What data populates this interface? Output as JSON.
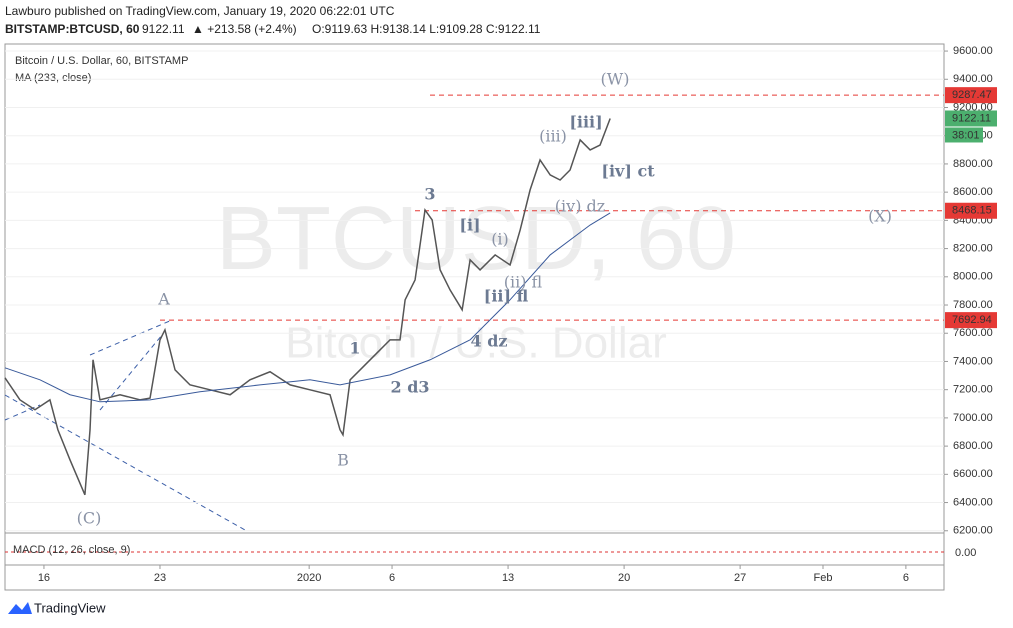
{
  "header": {
    "published": "Lawburo published on TradingView.com, January 19, 2020 06:22:01 UTC",
    "symbol": "BITSTAMP:BTCUSD, 60",
    "last": "9122.11",
    "change": "▲ +213.58 (+2.4%)",
    "ohlc": "O:9119.63 H:9138.14 L:9109.28 C:9122.11"
  },
  "footer": {
    "brand": "TradingView"
  },
  "chart_data": {
    "type": "line",
    "subtitle": "Bitcoin / U.S. Dollar, 60, BITSTAMP",
    "watermark": "BTCUSD, 60",
    "watermark_sub": "Bitcoin / U.S. Dollar",
    "macd_label": "MACD (12, 26, close, 9)",
    "macd_tick": "0.00",
    "series": [
      {
        "name": "BTCUSD",
        "color": "#555555",
        "x": [
          -2.35,
          -1.45,
          -0.54,
          0.36,
          0.84,
          1.57,
          2.47,
          2.78,
          2.96,
          3.38,
          4.59,
          5.79,
          6.4,
          7.0,
          7.3,
          7.91,
          8.81,
          10.02,
          11.23,
          12.43,
          13.64,
          14.85,
          16.05,
          17.26,
          17.86,
          18.04,
          18.47,
          19.07,
          19.98,
          20.88,
          21.48,
          21.79,
          22.39,
          22.99,
          23.42,
          23.9,
          24.5,
          25.23,
          25.71,
          26.31,
          27.22,
          28.12,
          28.73,
          29.33,
          29.93,
          30.54,
          31.14,
          31.74,
          32.35,
          32.95,
          33.55,
          34.16
        ],
        "values": [
          7284,
          7128,
          7058,
          7128,
          6916,
          6703,
          6455,
          6916,
          7412,
          7128,
          7164,
          7128,
          7140,
          7553,
          7624,
          7340,
          7234,
          7199,
          7164,
          7270,
          7327,
          7234,
          7199,
          7164,
          6916,
          6880,
          7270,
          7340,
          7447,
          7553,
          7553,
          7837,
          7978,
          8474,
          8403,
          8049,
          7907,
          7766,
          8120,
          8049,
          8155,
          8084,
          8332,
          8616,
          8828,
          8722,
          8686,
          8757,
          8970,
          8899,
          8934,
          9122
        ]
      },
      {
        "name": "MA (233, close)",
        "color": "#3a5a9a",
        "x": [
          -2.35,
          -0.24,
          1.57,
          3.38,
          6.4,
          9.41,
          13.03,
          16.05,
          17.86,
          20.88,
          23.3,
          25.71,
          28.12,
          30.54,
          32.95,
          34.16
        ],
        "values": [
          7355,
          7270,
          7164,
          7114,
          7128,
          7185,
          7234,
          7270,
          7234,
          7305,
          7412,
          7553,
          7837,
          8155,
          8367,
          8453
        ]
      }
    ],
    "xlim": [
      -2.35,
      54.3
    ],
    "ylim": [
      6170,
      9650
    ],
    "xticks": [
      {
        "value": 0,
        "label": "16"
      },
      {
        "value": 7,
        "label": "23"
      },
      {
        "value": 16,
        "label": "2020"
      },
      {
        "value": 21,
        "label": "6"
      },
      {
        "value": 28,
        "label": "13"
      },
      {
        "value": 35,
        "label": "20"
      },
      {
        "value": 42,
        "label": "27"
      },
      {
        "value": 47,
        "label": "Feb"
      },
      {
        "value": 52,
        "label": "6"
      }
    ],
    "yticks": [
      {
        "value": 6200,
        "label": "6200.00"
      },
      {
        "value": 6400,
        "label": "6400.00"
      },
      {
        "value": 6600,
        "label": "6600.00"
      },
      {
        "value": 6800,
        "label": "6800.00"
      },
      {
        "value": 7000,
        "label": "7000.00"
      },
      {
        "value": 7200,
        "label": "7200.00"
      },
      {
        "value": 7400,
        "label": "7400.00"
      },
      {
        "value": 7600,
        "label": "7600.00"
      },
      {
        "value": 7800,
        "label": "7800.00"
      },
      {
        "value": 8000,
        "label": "8000.00"
      },
      {
        "value": 8200,
        "label": "8200.00"
      },
      {
        "value": 8400,
        "label": "8400.00"
      },
      {
        "value": 8600,
        "label": "8600.00"
      },
      {
        "value": 8800,
        "label": "8800.00"
      },
      {
        "value": 9000,
        "label": "9000.00"
      },
      {
        "value": 9200,
        "label": "9200.00"
      },
      {
        "value": 9400,
        "label": "9400.00"
      },
      {
        "value": 9600,
        "label": "9600.00"
      }
    ],
    "levels": [
      9287.47,
      8468.15,
      7692.94
    ],
    "level_color": "#e53935",
    "last_price": 9122.11,
    "last_color": "#4caf6e",
    "countdown": "38:01",
    "annotations": [
      "(W)",
      "[iii]",
      "(iii)",
      "[iv] ct",
      "3",
      "(iv) dz",
      "(X)",
      "[i]",
      "(i)",
      "(ii) fl",
      "[ii] fl",
      "A",
      "1",
      "4 dz",
      "2 d3",
      "B",
      "(C)"
    ]
  }
}
